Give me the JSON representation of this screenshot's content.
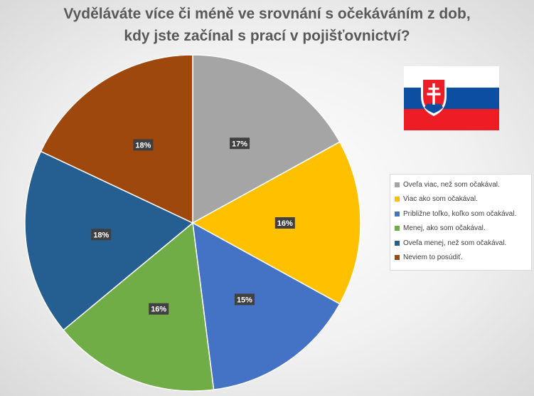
{
  "chart_data": {
    "type": "pie",
    "title": [
      "Vyděláváte více či méně ve srovnání s očekáváním z dob,",
      "kdy jste začínal s prací v pojišťovnictví?"
    ],
    "categories": [
      "Oveľa viac, než som očakával.",
      "Viac ako som očakával.",
      "Približne toľko, koľko som očakával.",
      "Menej, ako som očakával.",
      "Oveľa menej, než som očakával.",
      "Neviem to posúdiť."
    ],
    "values": [
      17,
      16,
      15,
      16,
      18,
      18
    ],
    "data_labels": [
      "17%",
      "16%",
      "15%",
      "16%",
      "18%",
      "18%"
    ],
    "colors": [
      "#a5a5a5",
      "#ffc000",
      "#4472c4",
      "#70ad47",
      "#255e91",
      "#9e480e"
    ],
    "legend_position": "right"
  },
  "flag": {
    "name": "slovakia-flag-icon",
    "colors": [
      "#ffffff",
      "#0b4ea2",
      "#ee1c25"
    ]
  }
}
